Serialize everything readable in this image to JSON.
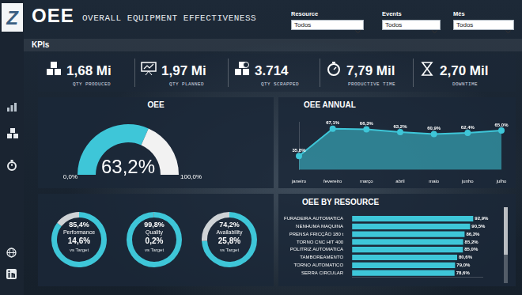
{
  "header": {
    "logo": "Z",
    "title": "OEE",
    "subtitle": "OVERALL EQUIPMENT EFFECTIVENESS"
  },
  "filters": [
    {
      "label": "Resource",
      "value": "Todos"
    },
    {
      "label": "Events",
      "value": "Todos"
    },
    {
      "label": "Mês",
      "value": "Todos"
    }
  ],
  "kpi_section": "KPIs",
  "kpis": [
    {
      "value": "1,68 Mi",
      "label": "QTY PRODUCED"
    },
    {
      "value": "1,97 Mi",
      "label": "QTY PLANNED"
    },
    {
      "value": "3.714",
      "label": "QTY SCRAPPED"
    },
    {
      "value": "7,79 Mil",
      "label": "PRODUCTIVE TIME"
    },
    {
      "value": "2,70 Mil",
      "label": "DOWNTIME"
    }
  ],
  "chart_data": [
    {
      "type": "gauge",
      "title": "OEE",
      "value": 63.2,
      "value_label": "63,2%",
      "min": 0,
      "max": 100,
      "min_label": "0,0%",
      "max_label": "100,0%",
      "color": "#3ec6d8"
    },
    {
      "type": "area",
      "title": "OEE ANNUAL",
      "categories": [
        "janeiro",
        "fevereiro",
        "março",
        "abril",
        "maio",
        "junho",
        "julho"
      ],
      "values": [
        35.8,
        67.1,
        66.3,
        63.2,
        60.9,
        62.4,
        65.0
      ],
      "value_labels": [
        "35,8%",
        "67,1%",
        "66,3%",
        "63,2%",
        "60,9%",
        "62,4%",
        "65,0%"
      ],
      "color": "#3ec6d8",
      "ylim": [
        20,
        75
      ],
      "data_labels": true,
      "tick_labels": "x",
      "grid": false,
      "marker": "circle"
    },
    {
      "type": "doughnut",
      "color": "#3ec6d8",
      "series": [
        {
          "name": "Performance",
          "value": 85.4,
          "value_label": "85,4%",
          "gap": 14.6,
          "gap_label": "14,6%",
          "gap_name": "vs Target"
        },
        {
          "name": "Quality",
          "value": 99.8,
          "value_label": "99,8%",
          "gap": 0.2,
          "gap_label": "0,2%",
          "gap_name": "vs Target"
        },
        {
          "name": "Availability",
          "value": 74.2,
          "value_label": "74,2%",
          "gap": 25.8,
          "gap_label": "25,8%",
          "gap_name": "vs Target"
        }
      ]
    },
    {
      "type": "bar",
      "orientation": "horizontal",
      "title": "OEE BY RESOURCE",
      "categories": [
        "FURADEIRA AUTOMATICA",
        "NENHUMA MAQUINA",
        "PRENSA FRICÇÃO 180 t",
        "TORNO CNC HIT 400",
        "POLITRIZ AUTOMATICA",
        "TAMBOREAMENTO",
        "TORNO AUTOMATICO",
        "SERRA CIRCULAR"
      ],
      "values": [
        92.9,
        90.5,
        86.3,
        85.2,
        85.0,
        80.6,
        79.0,
        78.6
      ],
      "value_labels": [
        "92,9%",
        "90,5%",
        "86,3%",
        "85,2%",
        "85,0%",
        "80,6%",
        "79,0%",
        "78,6%"
      ],
      "color": "#3ec6d8",
      "xlim": [
        0,
        100
      ],
      "data_labels": true,
      "tick_labels": "y",
      "grid": false
    }
  ]
}
